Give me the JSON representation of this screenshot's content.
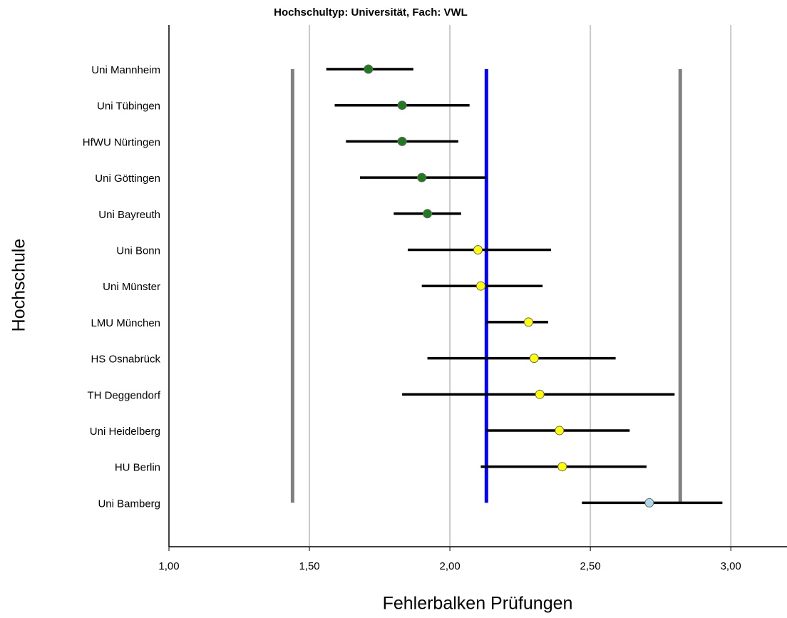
{
  "chart_data": {
    "type": "errorbar",
    "title": "Hochschultyp: Universität, Fach: VWL",
    "x_label": "Fehlerbalken Prüfungen",
    "y_label": "Hochschule",
    "categories": [
      "Uni Mannheim",
      "Uni Tübingen",
      "HfWU Nürtingen",
      "Uni Göttingen",
      "Uni Bayreuth",
      "Uni Bonn",
      "Uni Münster",
      "LMU München",
      "HS Osnabrück",
      "TH Deggendorf",
      "Uni Heidelberg",
      "HU Berlin",
      "Uni Bamberg"
    ],
    "values": [
      1.71,
      1.83,
      1.83,
      1.9,
      1.92,
      2.1,
      2.11,
      2.28,
      2.3,
      2.32,
      2.39,
      2.4,
      2.71
    ],
    "lower": [
      1.56,
      1.59,
      1.63,
      1.68,
      1.8,
      1.85,
      1.9,
      2.13,
      1.92,
      1.83,
      2.13,
      2.11,
      2.47
    ],
    "upper": [
      1.87,
      2.07,
      2.03,
      2.13,
      2.04,
      2.36,
      2.33,
      2.35,
      2.59,
      2.8,
      2.64,
      2.7,
      2.97
    ],
    "point_colors": [
      "#1e7b1e",
      "#1e7b1e",
      "#1e7b1e",
      "#1e7b1e",
      "#1e7b1e",
      "#ffff00",
      "#ffff00",
      "#ffff00",
      "#ffff00",
      "#ffff00",
      "#ffff00",
      "#ffff00",
      "#add8e6"
    ],
    "reference_lines": [
      {
        "value": 1.44,
        "color": "#808080"
      },
      {
        "value": 2.82,
        "color": "#808080"
      },
      {
        "value": 2.13,
        "color": "#0000ff"
      }
    ],
    "xlim": [
      1.0,
      3.2
    ],
    "xticks": [
      {
        "value": 1.0,
        "label": "1,00"
      },
      {
        "value": 1.5,
        "label": "1,50"
      },
      {
        "value": 2.0,
        "label": "2,00"
      },
      {
        "value": 2.5,
        "label": "2,50"
      },
      {
        "value": 3.0,
        "label": "3,00"
      }
    ],
    "grid": true
  }
}
